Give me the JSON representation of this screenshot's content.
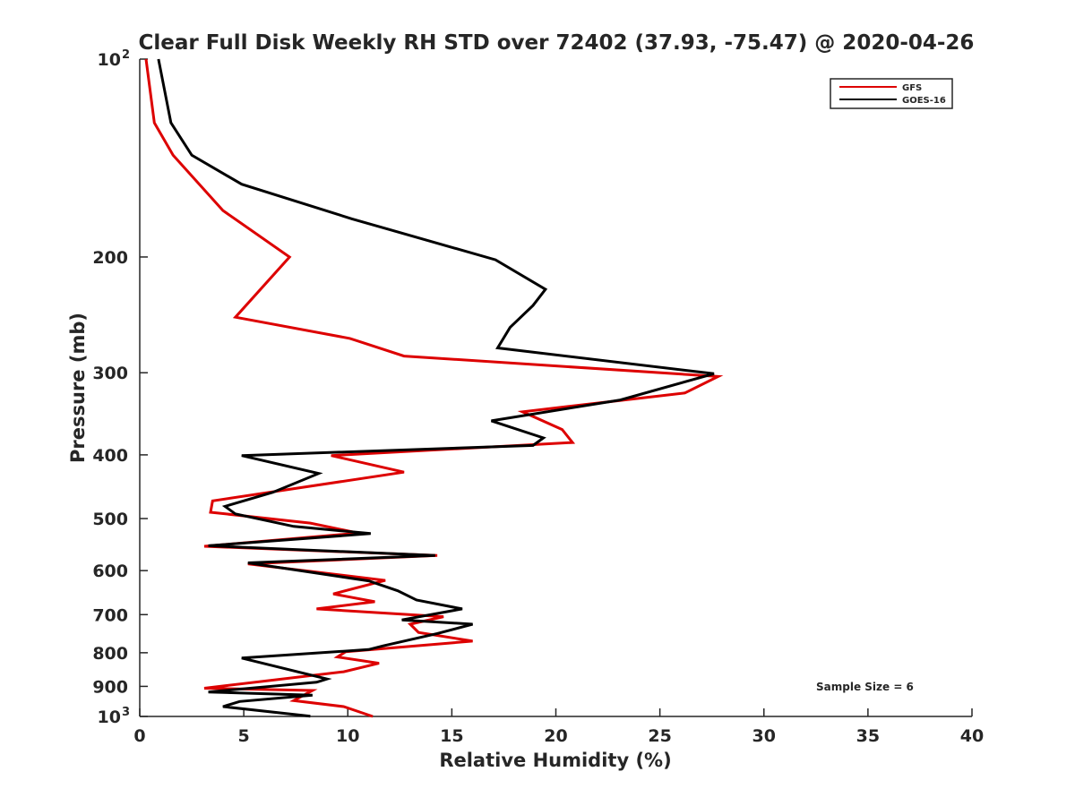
{
  "chart_data": {
    "type": "line",
    "title": "Clear Full Disk Weekly RH STD over 72402 (37.93, -75.47) @ 2020-04-26",
    "xlabel": "Relative Humidity (%)",
    "ylabel": "Pressure (mb)",
    "xlim": [
      0,
      40
    ],
    "ylim": [
      100,
      1000
    ],
    "yscale": "log",
    "yreversed": true,
    "grid": false,
    "xticks": [
      {
        "value": 0,
        "label": "0"
      },
      {
        "value": 5,
        "label": "5"
      },
      {
        "value": 10,
        "label": "10"
      },
      {
        "value": 15,
        "label": "15"
      },
      {
        "value": 20,
        "label": "20"
      },
      {
        "value": 25,
        "label": "25"
      },
      {
        "value": 30,
        "label": "30"
      },
      {
        "value": 35,
        "label": "35"
      },
      {
        "value": 40,
        "label": "40"
      }
    ],
    "yticks": [
      {
        "value": 100,
        "label": "10",
        "sup": "2"
      },
      {
        "value": 200,
        "label": "200"
      },
      {
        "value": 300,
        "label": "300"
      },
      {
        "value": 400,
        "label": "400"
      },
      {
        "value": 500,
        "label": "500"
      },
      {
        "value": 600,
        "label": "600"
      },
      {
        "value": 700,
        "label": "700"
      },
      {
        "value": 800,
        "label": "800"
      },
      {
        "value": 900,
        "label": "900"
      },
      {
        "value": 1000,
        "label": "10",
        "sup": "3"
      }
    ],
    "legend_position": "top-right",
    "annotation": "Sample Size = 6",
    "series": [
      {
        "name": "GFS",
        "color": "#dd0000",
        "points": [
          [
            0.3,
            100
          ],
          [
            0.7,
            125
          ],
          [
            1.6,
            140
          ],
          [
            4.0,
            170
          ],
          [
            7.2,
            200
          ],
          [
            4.6,
            247
          ],
          [
            10.1,
            266
          ],
          [
            12.7,
            283
          ],
          [
            27.8,
            304
          ],
          [
            26.2,
            322
          ],
          [
            18.4,
            344
          ],
          [
            20.3,
            366
          ],
          [
            20.8,
            383
          ],
          [
            9.2,
            401
          ],
          [
            12.7,
            425
          ],
          [
            3.5,
            470
          ],
          [
            3.4,
            489
          ],
          [
            8.2,
            508
          ],
          [
            10.5,
            526
          ],
          [
            3.1,
            551
          ],
          [
            14.3,
            569
          ],
          [
            5.2,
            586
          ],
          [
            11.8,
            621
          ],
          [
            9.3,
            651
          ],
          [
            11.3,
            669
          ],
          [
            8.5,
            686
          ],
          [
            14.6,
            705
          ],
          [
            13.0,
            724
          ],
          [
            13.4,
            745
          ],
          [
            16.0,
            768
          ],
          [
            9.9,
            797
          ],
          [
            9.5,
            812
          ],
          [
            11.5,
            830
          ],
          [
            9.8,
            855
          ],
          [
            3.1,
            906
          ],
          [
            8.3,
            913
          ],
          [
            7.4,
            946
          ],
          [
            9.8,
            966
          ],
          [
            11.2,
            1000
          ]
        ]
      },
      {
        "name": "GOES-16",
        "color": "#000000",
        "points": [
          [
            0.9,
            100
          ],
          [
            1.5,
            125
          ],
          [
            2.5,
            140
          ],
          [
            4.9,
            155
          ],
          [
            10.2,
            175
          ],
          [
            17.1,
            202
          ],
          [
            19.5,
            224
          ],
          [
            18.9,
            237
          ],
          [
            17.8,
            256
          ],
          [
            17.2,
            275
          ],
          [
            27.6,
            301
          ],
          [
            23.1,
            330
          ],
          [
            16.9,
            355
          ],
          [
            19.4,
            377
          ],
          [
            18.9,
            387
          ],
          [
            4.9,
            401
          ],
          [
            8.6,
            427
          ],
          [
            6.4,
            456
          ],
          [
            4.1,
            479
          ],
          [
            4.6,
            492
          ],
          [
            7.4,
            514
          ],
          [
            11.1,
            527
          ],
          [
            3.3,
            550
          ],
          [
            14.2,
            569
          ],
          [
            5.2,
            584
          ],
          [
            11.0,
            622
          ],
          [
            12.4,
            644
          ],
          [
            13.3,
            665
          ],
          [
            15.5,
            686
          ],
          [
            12.6,
            713
          ],
          [
            16.0,
            724
          ],
          [
            14.3,
            748
          ],
          [
            11.7,
            781
          ],
          [
            11.0,
            791
          ],
          [
            4.9,
            815
          ],
          [
            9.0,
            877
          ],
          [
            8.5,
            887
          ],
          [
            3.3,
            918
          ],
          [
            8.3,
            928
          ],
          [
            4.8,
            949
          ],
          [
            4.0,
            966
          ],
          [
            8.2,
            999
          ]
        ]
      }
    ]
  }
}
